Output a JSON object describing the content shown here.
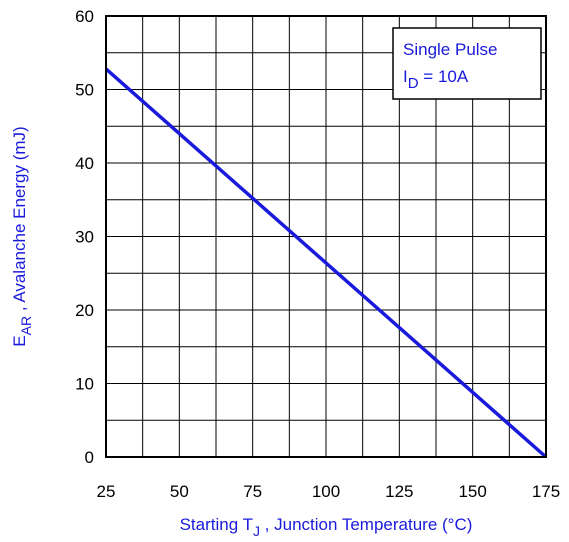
{
  "chart_data": {
    "type": "line",
    "xlabel": {
      "prefix": "Starting T",
      "sub": "J",
      "suffix": " , Junction Temperature (°C)"
    },
    "ylabel": {
      "prefix": "E",
      "sub": "AR",
      "suffix": " , Avalanche Energy (mJ)"
    },
    "xlim": [
      25,
      175
    ],
    "ylim": [
      0,
      60
    ],
    "x_ticks": [
      25,
      50,
      75,
      100,
      125,
      150,
      175
    ],
    "y_ticks": [
      0,
      10,
      20,
      30,
      40,
      50,
      60
    ],
    "x_minor_step": 12.5,
    "y_minor_step": 5,
    "grid": true,
    "legend": {
      "placement": "top-right",
      "line1": "Single Pulse",
      "line2": {
        "prefix": "I",
        "sub": "D",
        "suffix": " = 10A"
      }
    },
    "series": [
      {
        "x": [
          25,
          175
        ],
        "y": [
          52.8,
          0
        ]
      }
    ],
    "colors": {
      "series": "#1a1adc",
      "label_text": "#1a1adc",
      "axes": "#000000"
    }
  }
}
